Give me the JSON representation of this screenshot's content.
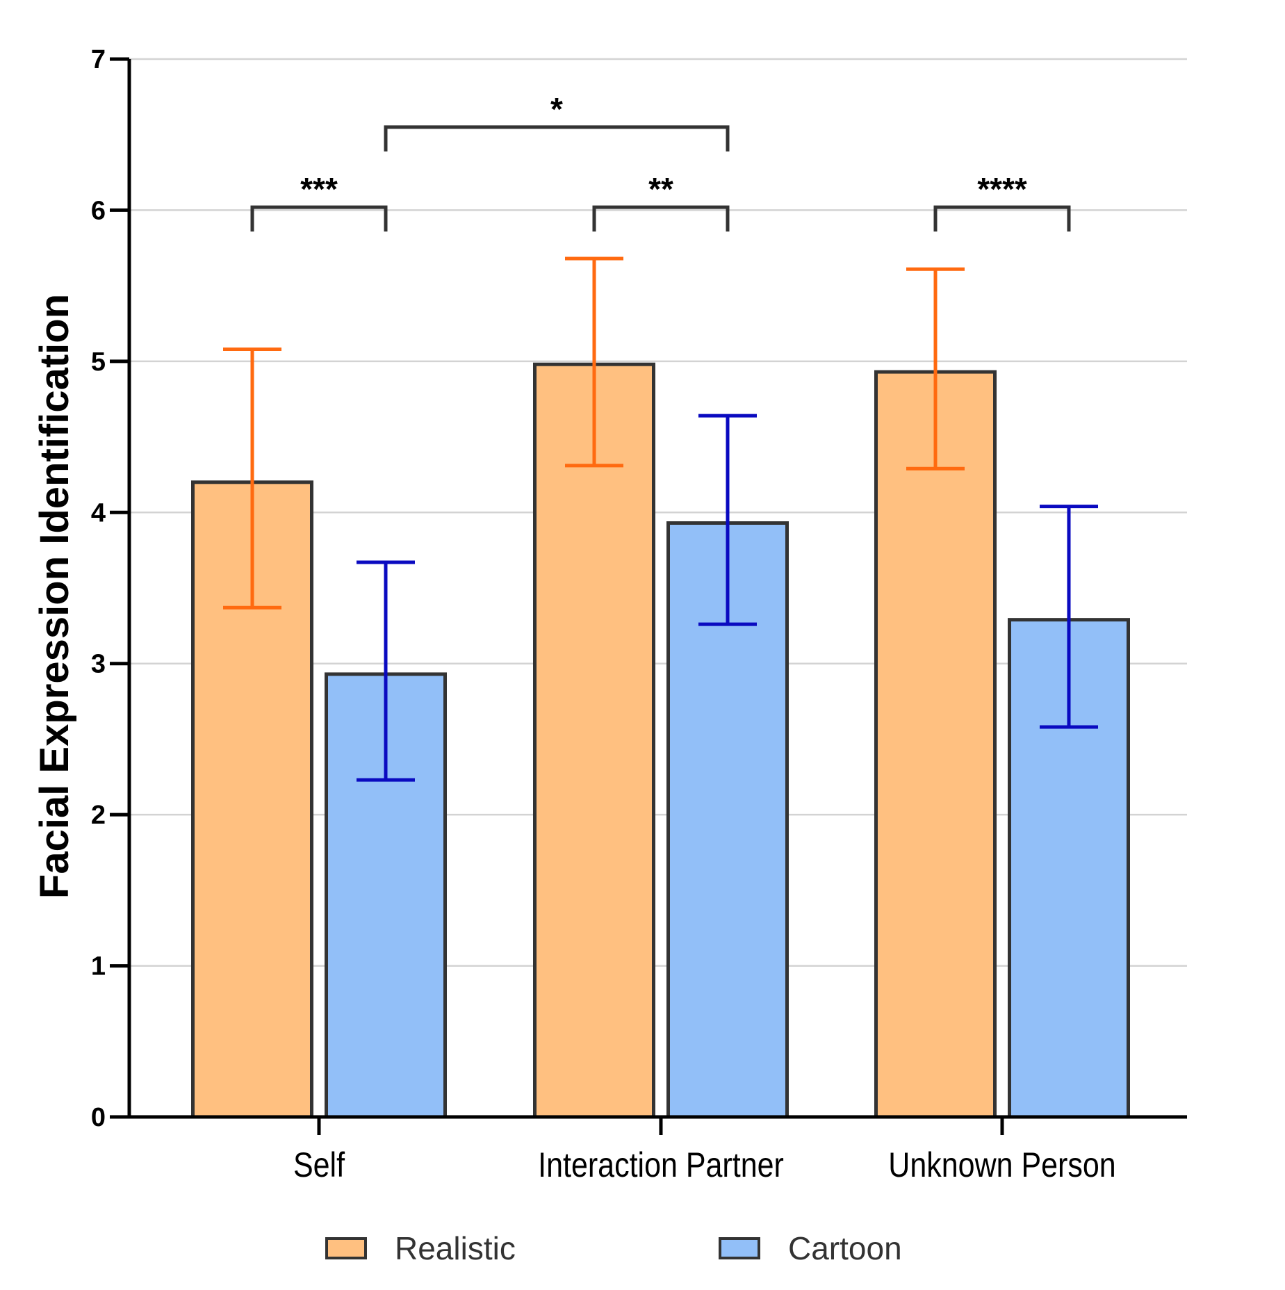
{
  "chart_data": {
    "type": "bar",
    "ylabel": "Facial Expression Identification",
    "xlabel": "",
    "ylim": [
      0,
      7
    ],
    "yticks": [
      0,
      1,
      2,
      3,
      4,
      5,
      6,
      7
    ],
    "grid": true,
    "categories": [
      "Self",
      "Interaction Partner",
      "Unknown Person"
    ],
    "series": [
      {
        "name": "Realistic",
        "values": [
          4.2,
          4.98,
          4.93
        ],
        "err_upper": [
          5.08,
          5.68,
          5.61
        ],
        "err_lower": [
          3.37,
          4.31,
          4.29
        ],
        "fill": "#ffc080",
        "error_color": "#ff6a10"
      },
      {
        "name": "Cartoon",
        "values": [
          2.93,
          3.93,
          3.29
        ],
        "err_upper": [
          3.67,
          4.64,
          4.04
        ],
        "err_lower": [
          2.23,
          3.26,
          2.58
        ],
        "fill": "#92bff8",
        "error_color": "#0a0ac0"
      }
    ],
    "legend": {
      "position": "bottom",
      "entries": [
        "Realistic",
        "Cartoon"
      ]
    },
    "significance": [
      {
        "label": "***",
        "from": {
          "category": 0,
          "series": 0
        },
        "to": {
          "category": 0,
          "series": 1
        },
        "level": 6.02
      },
      {
        "label": "**",
        "from": {
          "category": 1,
          "series": 0
        },
        "to": {
          "category": 1,
          "series": 1
        },
        "level": 6.02
      },
      {
        "label": "****",
        "from": {
          "category": 2,
          "series": 0
        },
        "to": {
          "category": 2,
          "series": 1
        },
        "level": 6.02
      },
      {
        "label": "*",
        "from": {
          "category": 0,
          "series": 1
        },
        "to": {
          "category": 1,
          "series": 1
        },
        "level": 6.55
      }
    ],
    "colors": {
      "axis": "#000000",
      "grid": "#d3d3d3",
      "bar_stroke": "#333333",
      "bracket": "#333333"
    }
  }
}
